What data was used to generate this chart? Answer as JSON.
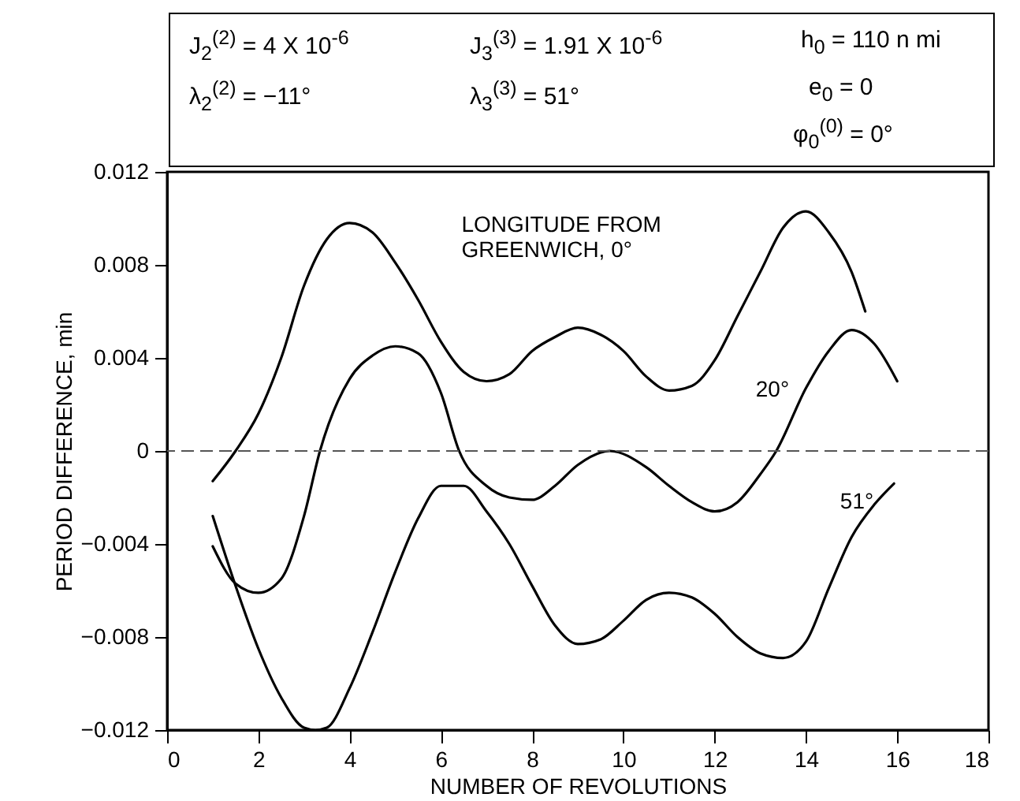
{
  "chart_data": {
    "type": "line",
    "xlabel": "NUMBER OF REVOLUTIONS",
    "ylabel": "PERIOD DIFFERENCE, min",
    "xlim": [
      0,
      18
    ],
    "xticks": [
      0,
      2,
      4,
      6,
      8,
      10,
      12,
      14,
      16,
      18
    ],
    "ylim": [
      -0.012,
      0.012
    ],
    "yticks": [
      -0.012,
      -0.008,
      -0.004,
      0,
      0.004,
      0.008,
      0.012
    ],
    "line_style": "solid",
    "annotations": [
      "J$_{2}$$^{(2)}$ = 4 X 10$^{-6}$",
      "λ$_{2}$$^{(2)}$ = −11°",
      "J$_{3}$$^{(3)}$ = 1.91 X 10$^{-6}$",
      "λ$_{3}$$^{(3)}$ = 51°",
      "h$_{0}$ = 110 n mi",
      "e$_{0}$ = 0",
      "φ$_{0}$$^{(0)}$ = 0°"
    ],
    "ref_lines": [
      {
        "axis": "y",
        "value": 0,
        "line_style": "dashed",
        "color": "#555555"
      }
    ],
    "series": [
      {
        "name": "LONGITUDE FROM GREENWICH, 0°",
        "color": "#000000",
        "x": [
          1,
          1.5,
          2,
          2.5,
          3,
          3.5,
          4,
          4.5,
          5,
          5.5,
          6,
          6.5,
          7,
          7.5,
          8,
          8.5,
          9,
          9.5,
          10,
          10.5,
          11,
          11.5,
          12,
          12.5,
          13,
          13.5,
          14,
          14.5,
          15,
          15.3
        ],
        "values": [
          -0.0013,
          0,
          0.0016,
          0.004,
          0.0071,
          0.0091,
          0.0098,
          0.0094,
          0.0081,
          0.0065,
          0.0047,
          0.0034,
          0.003,
          0.0033,
          0.0043,
          0.0049,
          0.0053,
          0.005,
          0.0043,
          0.0032,
          0.0026,
          0.0028,
          0.0039,
          0.0058,
          0.0077,
          0.0096,
          0.0103,
          0.0094,
          0.0077,
          0.006
        ]
      },
      {
        "name": "20°",
        "color": "#000000",
        "x": [
          1,
          1.5,
          2,
          2.5,
          3,
          3.35,
          4,
          4.5,
          5,
          5.5,
          6,
          6.4,
          7,
          7.5,
          8,
          8.5,
          9,
          9.7,
          10.5,
          11,
          11.5,
          12,
          12.5,
          13,
          13.35,
          14,
          14.5,
          15,
          15.5,
          16
        ],
        "values": [
          -0.0041,
          -0.0057,
          -0.0061,
          -0.0055,
          -0.0028,
          0,
          0.0031,
          0.0041,
          0.0045,
          0.0042,
          0.0025,
          0,
          -0.0015,
          -0.002,
          -0.0021,
          -0.0015,
          -0.0006,
          0,
          -0.0007,
          -0.0015,
          -0.0022,
          -0.0026,
          -0.0022,
          -0.001,
          0,
          0.0027,
          0.0043,
          0.0052,
          0.0046,
          0.003
        ]
      },
      {
        "name": "51°",
        "color": "#000000",
        "x": [
          1,
          1.5,
          2,
          2.5,
          3,
          3.25,
          3.5,
          4,
          4.5,
          5,
          5.5,
          6,
          6.5,
          7,
          7.5,
          8,
          8.5,
          9,
          9.5,
          10,
          10.5,
          11,
          11.5,
          12,
          12.5,
          13,
          13.5,
          14,
          14.5,
          15,
          15.5,
          15.93
        ],
        "values": [
          -0.0028,
          -0.0058,
          -0.0085,
          -0.0106,
          -0.0119,
          -0.012,
          -0.0119,
          -0.0102,
          -0.0078,
          -0.0052,
          -0.0029,
          -0.0015,
          -0.0015,
          -0.0026,
          -0.004,
          -0.0058,
          -0.0075,
          -0.0083,
          -0.0081,
          -0.0073,
          -0.0064,
          -0.0061,
          -0.0063,
          -0.007,
          -0.008,
          -0.0087,
          -0.0089,
          -0.0082,
          -0.0059,
          -0.0037,
          -0.0023,
          -0.0014
        ]
      }
    ]
  }
}
